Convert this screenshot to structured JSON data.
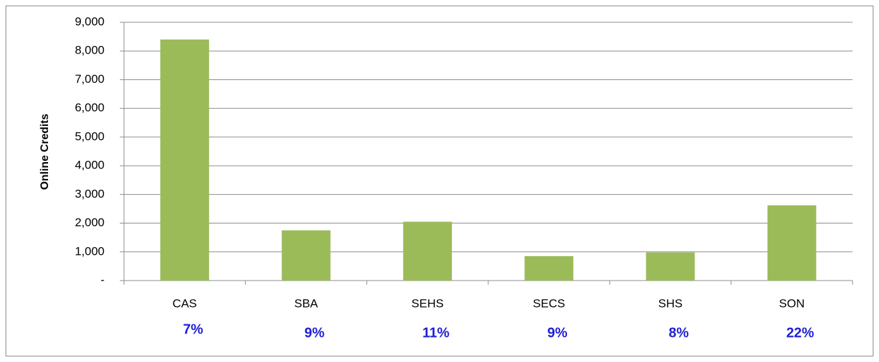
{
  "chart_data": {
    "type": "bar",
    "y_axis_label": "Online Credits",
    "categories": [
      "CAS",
      "SBA",
      "SEHS",
      "SECS",
      "SHS",
      "SON"
    ],
    "values": [
      8400,
      1750,
      2050,
      850,
      980,
      2620
    ],
    "color": "#9bbb59",
    "ylim": [
      0,
      9000
    ],
    "yticks": [
      {
        "value": 0,
        "label": "-"
      },
      {
        "value": 1000,
        "label": "1,000"
      },
      {
        "value": 2000,
        "label": "2,000"
      },
      {
        "value": 3000,
        "label": "3,000"
      },
      {
        "value": 4000,
        "label": "4,000"
      },
      {
        "value": 5000,
        "label": "5,000"
      },
      {
        "value": 6000,
        "label": "6,000"
      },
      {
        "value": 7000,
        "label": "7,000"
      },
      {
        "value": 8000,
        "label": "8,000"
      },
      {
        "value": 9000,
        "label": "9,000"
      }
    ],
    "grid": true,
    "annotations": [
      "7%",
      "9%",
      "11%",
      "9%",
      "8%",
      "22%"
    ]
  }
}
